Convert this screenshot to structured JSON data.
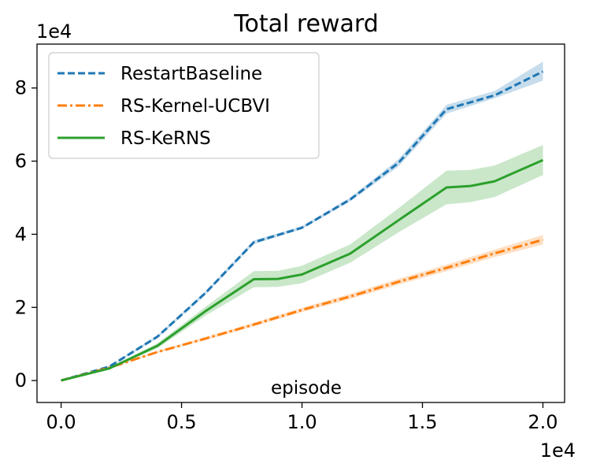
{
  "chart_data": {
    "type": "line",
    "title": "Total reward",
    "xlabel": "episode",
    "ylabel": "",
    "x_multiplier": "1e4",
    "y_multiplier": "1e4",
    "xlim": [
      -0.1,
      2.09
    ],
    "ylim": [
      -0.6,
      9.2
    ],
    "xticks": [
      0.0,
      0.5,
      1.0,
      1.5,
      2.0
    ],
    "xtick_labels": [
      "0.0",
      "0.5",
      "1.0",
      "1.5",
      "2.0"
    ],
    "yticks": [
      0,
      2,
      4,
      6,
      8
    ],
    "ytick_labels": [
      "0",
      "2",
      "4",
      "6",
      "8"
    ],
    "grid": false,
    "legend_position": "top-left",
    "series": [
      {
        "name": "RestartBaseline",
        "color": "#1f77b4",
        "linestyle": "dashed",
        "x": [
          0.0,
          0.2,
          0.4,
          0.6,
          0.8,
          1.0,
          1.2,
          1.4,
          1.6,
          1.8,
          2.0
        ],
        "y": [
          0.0,
          0.38,
          1.2,
          2.4,
          3.78,
          4.18,
          4.95,
          5.95,
          7.42,
          7.8,
          8.45
        ],
        "lower": [
          0.0,
          0.36,
          1.16,
          2.35,
          3.73,
          4.14,
          4.9,
          5.85,
          7.3,
          7.72,
          8.2
        ],
        "upper": [
          0.0,
          0.4,
          1.24,
          2.45,
          3.83,
          4.22,
          5.0,
          6.05,
          7.54,
          7.92,
          8.72
        ]
      },
      {
        "name": "RS-Kernel-UCBVI",
        "color": "#ff7f0e",
        "linestyle": "dashdot",
        "x": [
          0.0,
          0.2,
          0.4,
          0.6,
          0.8,
          1.0,
          1.2,
          1.4,
          1.6,
          1.8,
          2.0
        ],
        "y": [
          0.0,
          0.35,
          0.78,
          1.15,
          1.53,
          1.93,
          2.3,
          2.7,
          3.08,
          3.48,
          3.85
        ],
        "lower": [
          0.0,
          0.33,
          0.75,
          1.11,
          1.48,
          1.87,
          2.23,
          2.62,
          2.99,
          3.38,
          3.72
        ],
        "upper": [
          0.0,
          0.37,
          0.81,
          1.19,
          1.58,
          1.99,
          2.37,
          2.78,
          3.17,
          3.58,
          3.98
        ]
      },
      {
        "name": "RS-KeRNS",
        "color": "#2ca02c",
        "linestyle": "solid",
        "x": [
          0.0,
          0.2,
          0.4,
          0.6,
          0.8,
          0.9,
          1.0,
          1.2,
          1.4,
          1.6,
          1.7,
          1.8,
          2.0
        ],
        "y": [
          0.0,
          0.33,
          0.95,
          1.9,
          2.77,
          2.78,
          2.9,
          3.47,
          4.38,
          5.28,
          5.32,
          5.45,
          6.03
        ],
        "lower": [
          0.0,
          0.31,
          0.88,
          1.78,
          2.55,
          2.56,
          2.66,
          3.22,
          4.05,
          4.82,
          4.88,
          5.02,
          5.62
        ],
        "upper": [
          0.0,
          0.35,
          1.02,
          2.02,
          2.99,
          3.0,
          3.14,
          3.72,
          4.71,
          5.74,
          5.76,
          5.88,
          6.44
        ]
      }
    ]
  }
}
